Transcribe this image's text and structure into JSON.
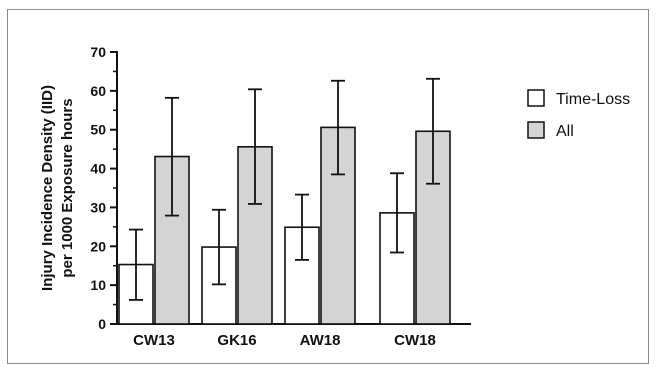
{
  "chart_data": {
    "type": "bar",
    "title": "",
    "ylabel_lines": [
      "Injury Incidence Density (IID)",
      "per 1000 Exposure hours"
    ],
    "xlabel": "",
    "ylim": [
      0,
      70
    ],
    "yticks": [
      0,
      10,
      20,
      30,
      40,
      50,
      60,
      70
    ],
    "categories": [
      "CW13",
      "GK16",
      "AW18",
      "CW18"
    ],
    "series": [
      {
        "name": "Time-Loss",
        "color": "#ffffff",
        "values": [
          15.3,
          19.8,
          24.9,
          28.6
        ],
        "err_low": [
          6.2,
          10.2,
          16.5,
          18.4
        ],
        "err_high": [
          24.3,
          29.4,
          33.3,
          38.8
        ]
      },
      {
        "name": "All",
        "color": "#d4d4d4",
        "values": [
          43.1,
          45.6,
          50.6,
          49.6
        ],
        "err_low": [
          27.9,
          30.9,
          38.5,
          36.1
        ],
        "err_high": [
          58.2,
          60.4,
          62.6,
          63.1
        ]
      }
    ],
    "legend_position": "right",
    "grid": false
  }
}
